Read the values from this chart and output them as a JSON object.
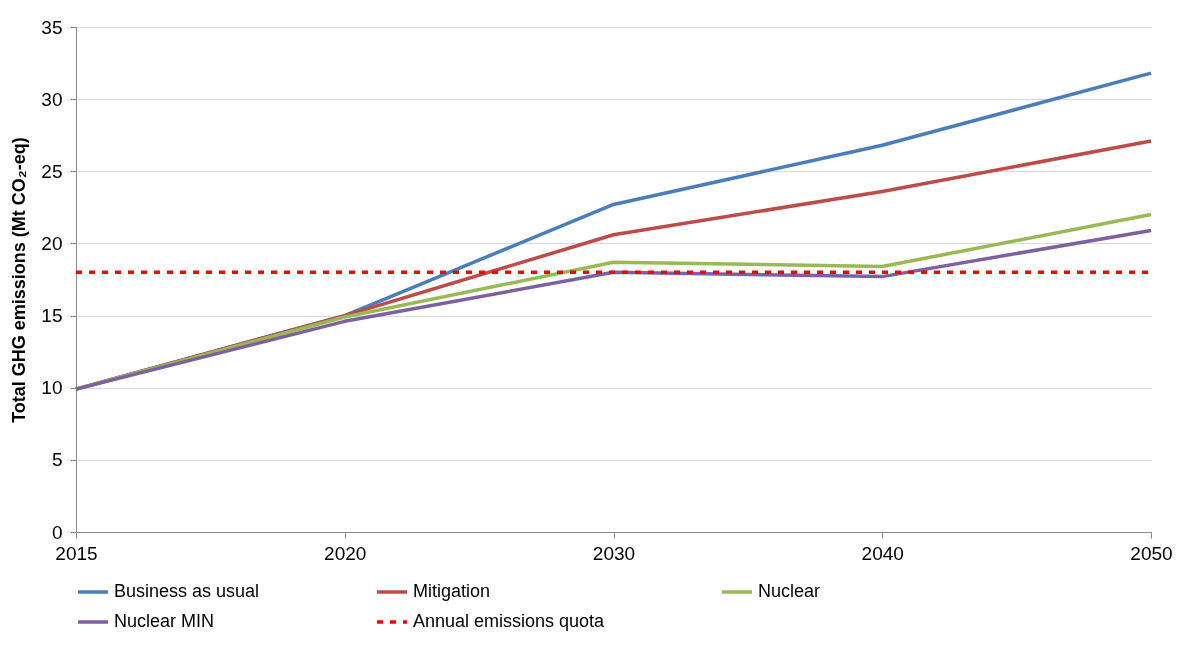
{
  "chart_data": {
    "type": "line",
    "ylabel": "Total GHG emissions (Mt CO₂-eq)",
    "categories": [
      "2015",
      "2020",
      "2030",
      "2040",
      "2050"
    ],
    "ylim": [
      0,
      35
    ],
    "yticks": [
      0,
      5,
      10,
      15,
      20,
      25,
      30,
      35
    ],
    "grid": "y",
    "legend": "bottom",
    "marker": "none",
    "series": [
      {
        "name": "Business as usual",
        "color": "#4a7ebb",
        "values": [
          9.9,
          15.0,
          22.7,
          26.8,
          31.8
        ]
      },
      {
        "name": "Mitigation",
        "color": "#be4b48",
        "values": [
          9.9,
          15.0,
          20.6,
          23.6,
          27.1
        ]
      },
      {
        "name": "Nuclear",
        "color": "#98b954",
        "values": [
          9.9,
          14.9,
          18.7,
          18.4,
          22.0
        ]
      },
      {
        "name": "Nuclear MIN",
        "color": "#7d60a0",
        "values": [
          9.9,
          14.6,
          18.0,
          17.7,
          20.9
        ]
      },
      {
        "name": "Annual emissions quota",
        "color": "#ff0000",
        "line_style": "dotted",
        "values": [
          18,
          18,
          18,
          18,
          18
        ]
      }
    ]
  }
}
